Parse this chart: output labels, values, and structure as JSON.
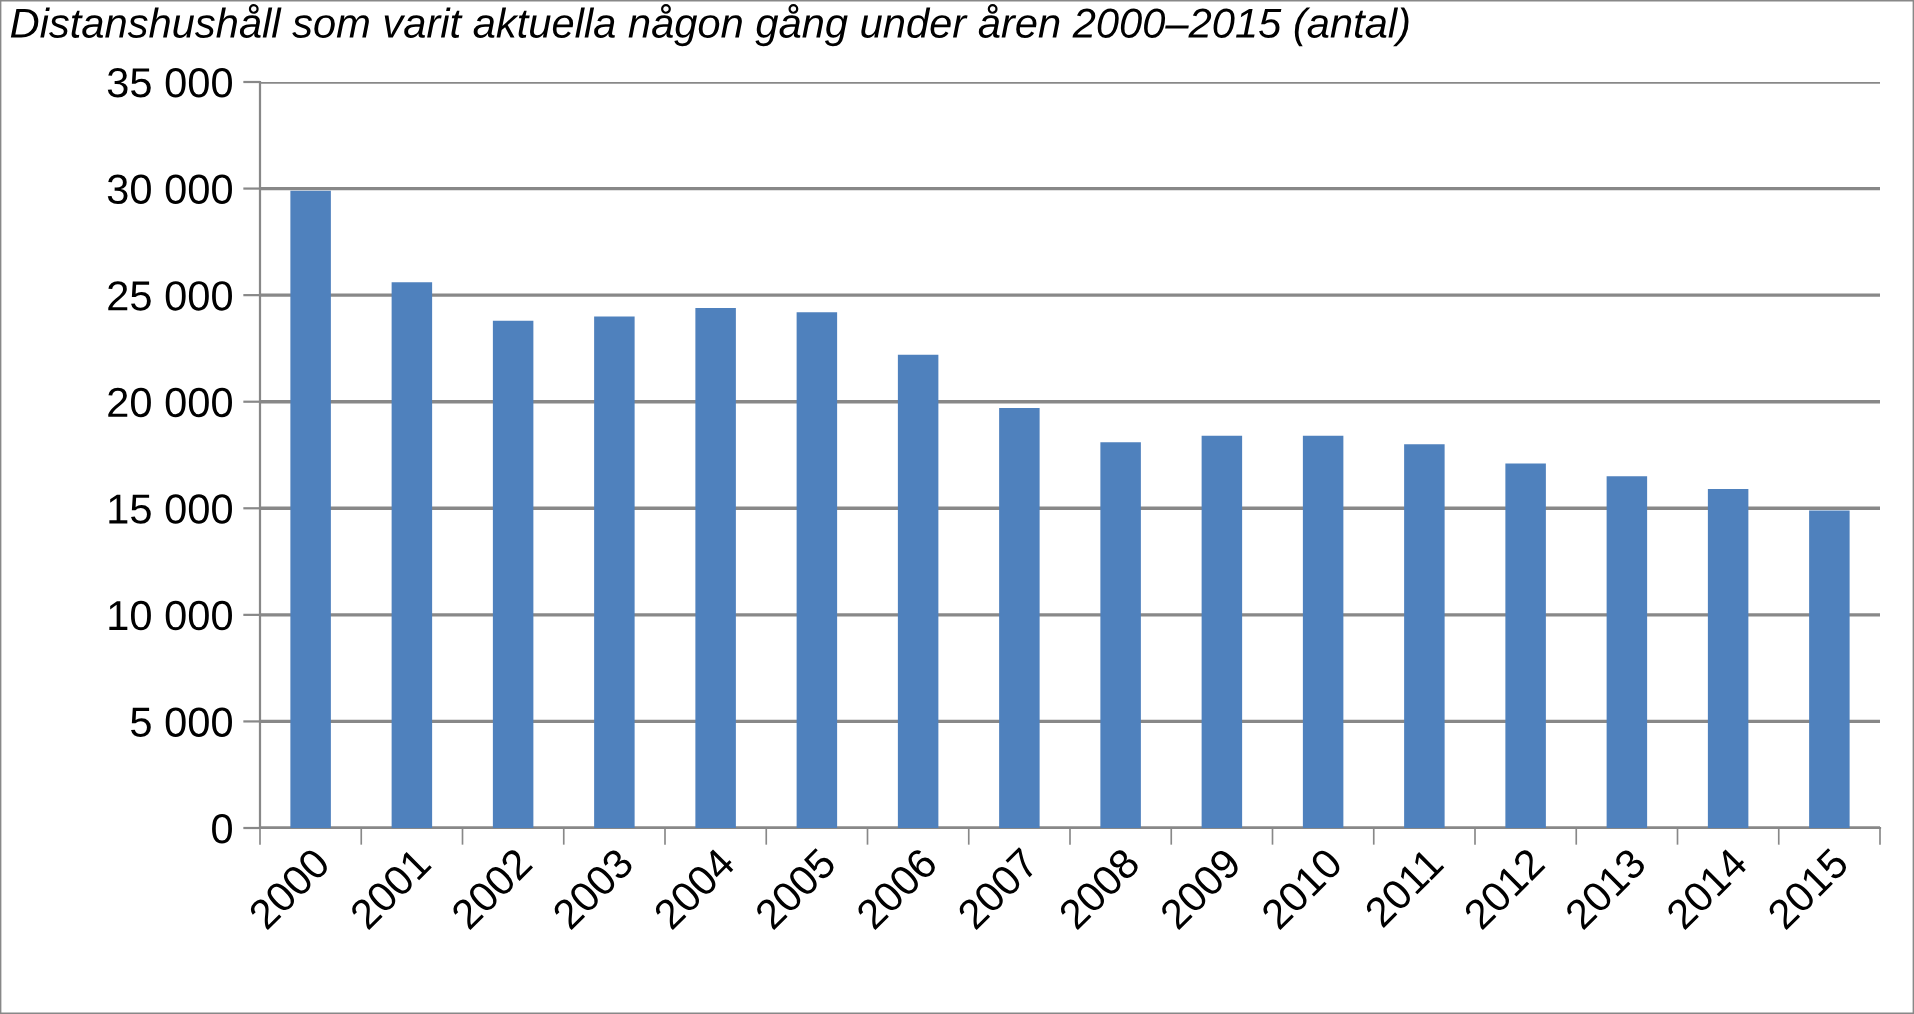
{
  "chart_data": {
    "type": "bar",
    "title": "Distanshushåll som varit aktuella någon gång under åren 2000–2015 (antal)",
    "categories": [
      "2000",
      "2001",
      "2002",
      "2003",
      "2004",
      "2005",
      "2006",
      "2007",
      "2008",
      "2009",
      "2010",
      "2011",
      "2012",
      "2013",
      "2014",
      "2015"
    ],
    "values": [
      29900,
      25600,
      23800,
      24000,
      24400,
      24200,
      22200,
      19700,
      18100,
      18400,
      18400,
      18000,
      17100,
      16500,
      15900,
      14900
    ],
    "color": "#4f81bd",
    "ylim": [
      0,
      35000
    ],
    "yticks": [
      0,
      {
        "value": 5000,
        "label": "5 000"
      },
      {
        "value": 10000,
        "label": "10 000"
      },
      {
        "value": 15000,
        "label": "15 000"
      },
      {
        "value": 20000,
        "label": "20 000"
      },
      {
        "value": 25000,
        "label": "25 000"
      },
      {
        "value": 30000,
        "label": "30 000"
      },
      {
        "value": 35000,
        "label": "35 000"
      }
    ],
    "grid": "y"
  }
}
